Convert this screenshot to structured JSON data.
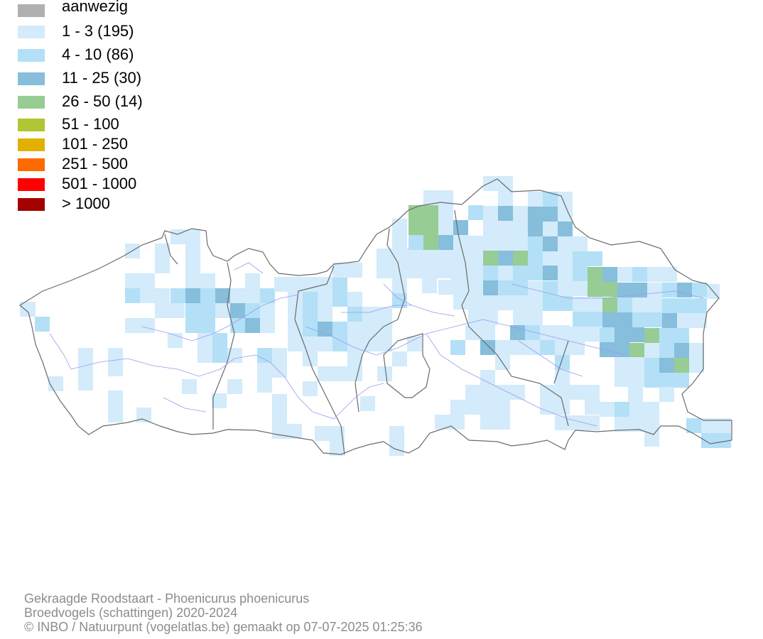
{
  "legend": [
    {
      "label": "aanwezig",
      "color": "#b0b0b0"
    },
    {
      "label": "1 - 3 (195)",
      "color": "#d3ebfa"
    },
    {
      "label": "4 - 10 (86)",
      "color": "#b3e0f7"
    },
    {
      "label": "11 - 25 (30)",
      "color": "#86bedc"
    },
    {
      "label": "26 - 50 (14)",
      "color": "#97cc95"
    },
    {
      "label": "51 - 100",
      "color": "#b2c532"
    },
    {
      "label": "101 - 250",
      "color": "#e1b000"
    },
    {
      "label": "251 - 500",
      "color": "#fe6a00"
    },
    {
      "label": "501 - 1000",
      "color": "#fe0000"
    },
    {
      "label": "> 1000",
      "color": "#a50000"
    }
  ],
  "footer": {
    "line1": "Gekraagde Roodstaart - Phoenicurus phoenicurus",
    "line2": "Broedvogels (schattingen) 2020-2024",
    "line3": "© INBO / Natuurpunt (vogelatlas.be) gemaakt op 07-07-2025 01:25:36"
  }
}
